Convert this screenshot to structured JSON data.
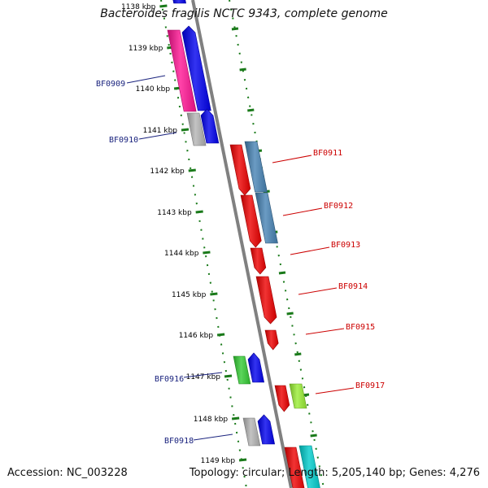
{
  "title": "Bacteroides fragilis NCTC 9343, complete genome",
  "footer": {
    "accession": "Accession: NC_003228",
    "summary": "Topology: circular; Length: 5,205,140 bp; Genes: 4,276"
  },
  "ruler": {
    "ticks": [
      {
        "label": "1138 kbp",
        "faded": true
      },
      {
        "label": "1139 kbp",
        "faded": false
      },
      {
        "label": "1140 kbp",
        "faded": false
      },
      {
        "label": "1141 kbp",
        "faded": false
      },
      {
        "label": "1142 kbp",
        "faded": false
      },
      {
        "label": "1143 kbp",
        "faded": false
      },
      {
        "label": "1144 kbp",
        "faded": false
      },
      {
        "label": "1145 kbp",
        "faded": false
      },
      {
        "label": "1146 kbp",
        "faded": false
      },
      {
        "label": "1147 kbp",
        "faded": false
      },
      {
        "label": "1148 kbp",
        "faded": false
      },
      {
        "label": "1149 kbp",
        "faded": false
      }
    ]
  },
  "genes": [
    {
      "label": "BF0909",
      "strand": "reverse",
      "color": "#1a237e"
    },
    {
      "label": "BF0910",
      "strand": "reverse",
      "color": "#1a237e"
    },
    {
      "label": "BF0911",
      "strand": "forward",
      "color": "#cc0000"
    },
    {
      "label": "BF0912",
      "strand": "forward",
      "color": "#cc0000"
    },
    {
      "label": "BF0913",
      "strand": "forward",
      "color": "#cc0000"
    },
    {
      "label": "BF0914",
      "strand": "forward",
      "color": "#cc0000"
    },
    {
      "label": "BF0915",
      "strand": "forward",
      "color": "#cc0000"
    },
    {
      "label": "BF0916",
      "strand": "reverse",
      "color": "#1a237e"
    },
    {
      "label": "BF0917",
      "strand": "forward",
      "color": "#cc0000"
    },
    {
      "label": "BF0918",
      "strand": "reverse",
      "color": "#1a237e"
    }
  ],
  "colors": {
    "backbone": "#808080",
    "ruler_ticks": "#1a7a1a",
    "feature_blue": "#0000ee",
    "feature_pink": "#ff1493",
    "feature_grey": "#b4b4b4",
    "feature_red": "#ee0000",
    "feature_steelblue": "#4682b4",
    "feature_green": "#33cc33",
    "feature_lime": "#99ee33",
    "feature_cyan": "#00cccc"
  }
}
